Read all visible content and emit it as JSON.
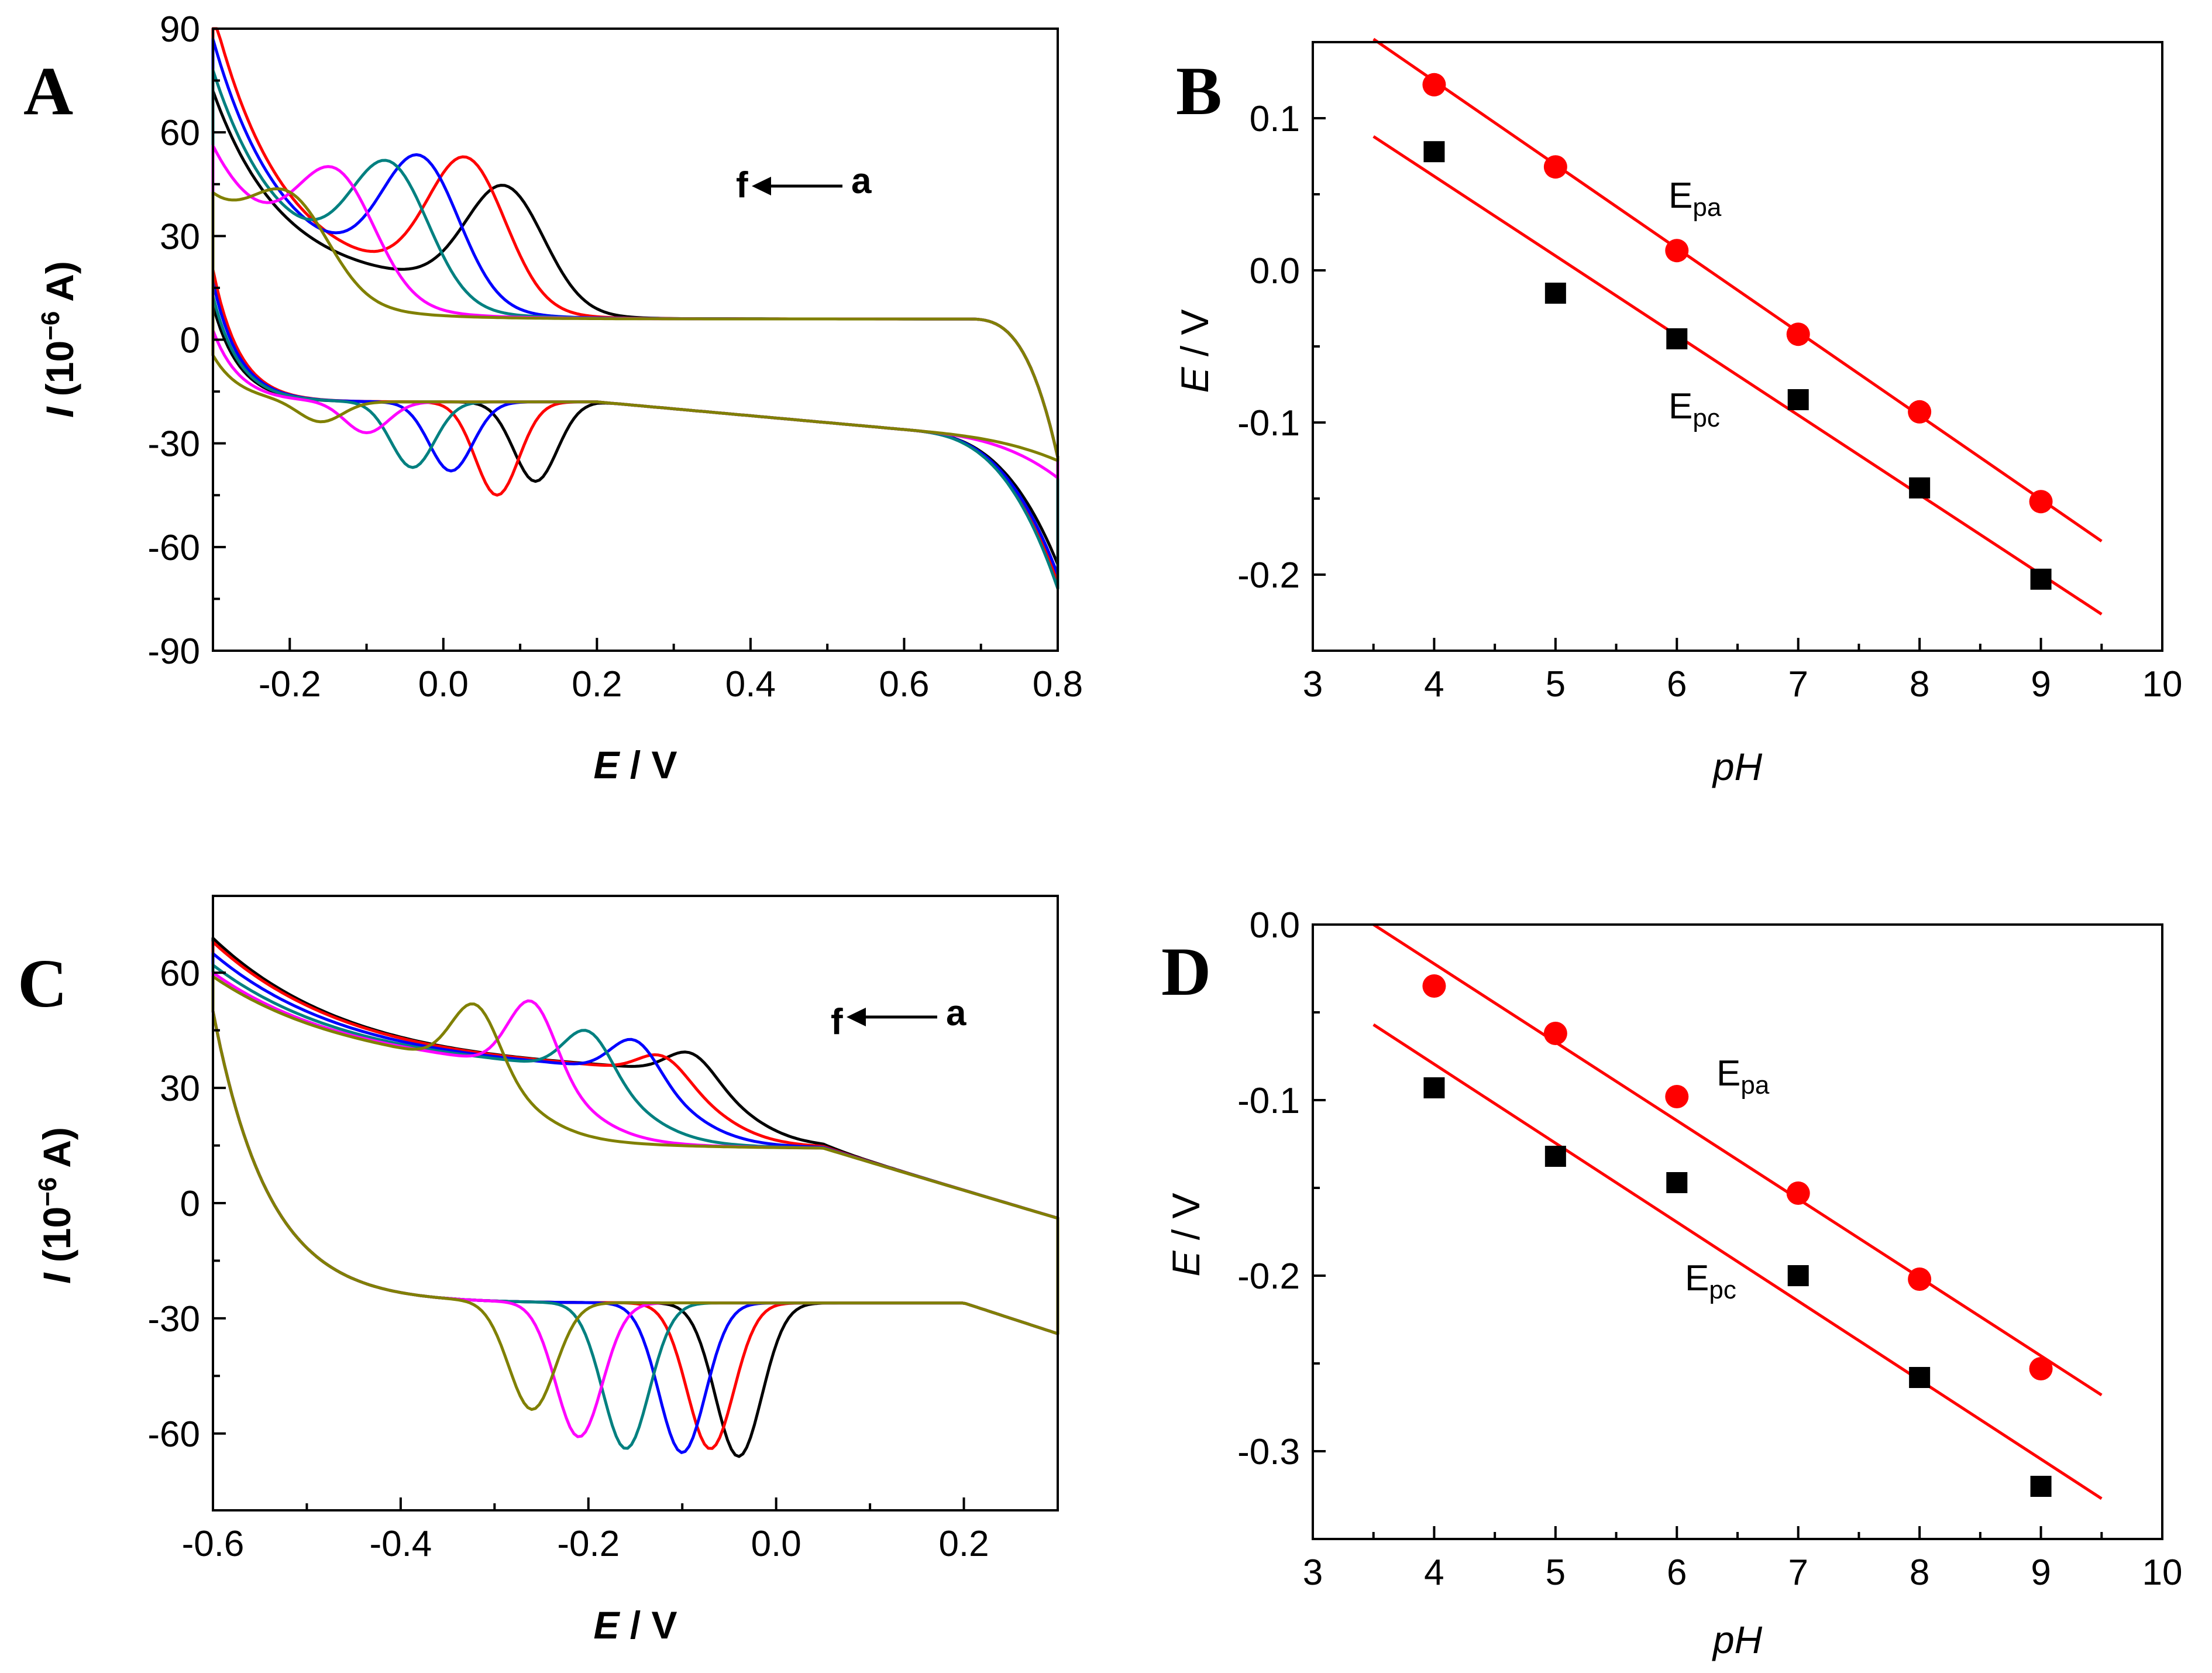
{
  "figure": {
    "panels": [
      "A",
      "B",
      "C",
      "D"
    ]
  },
  "chart_data": [
    {
      "panel": "A",
      "type": "line",
      "xlabel_italic": "E",
      "xlabel_rest": " / V",
      "ylabel_italic": "I",
      "ylabel_rest": " (10",
      "ylabel_sup": "−6",
      "ylabel_tail": " A)",
      "xlim": [
        -0.3,
        0.8
      ],
      "ylim": [
        -90,
        90
      ],
      "xticks": [
        -0.2,
        0.0,
        0.2,
        0.4,
        0.6,
        0.8
      ],
      "xtick_labels": [
        "-0.2",
        "0.0",
        "0.2",
        "0.4",
        "0.6",
        "0.8"
      ],
      "yticks": [
        -90,
        -60,
        -30,
        0,
        30,
        60,
        90
      ],
      "ytick_labels": [
        "-90",
        "-60",
        "-30",
        "0",
        "30",
        "60",
        "90"
      ],
      "annotation": {
        "from": "f",
        "to": "a"
      },
      "series": [
        {
          "color": "#000000",
          "Epa": 0.08,
          "Ipa": 43,
          "Epc": 0.12,
          "Ipc": -41,
          "start": 62,
          "end_anodic": -65
        },
        {
          "color": "#ff0000",
          "Epa": 0.03,
          "Ipa": 50,
          "Epc": 0.07,
          "Ipc": -45,
          "start": 85,
          "end_anodic": -70
        },
        {
          "color": "#0000ff",
          "Epa": -0.03,
          "Ipa": 49,
          "Epc": 0.01,
          "Ipc": -38,
          "start": 77,
          "end_anodic": -68
        },
        {
          "color": "#008080",
          "Epa": -0.07,
          "Ipa": 46,
          "Epc": -0.04,
          "Ipc": -37,
          "start": 68,
          "end_anodic": -72
        },
        {
          "color": "#ff00ff",
          "Epa": -0.14,
          "Ipa": 42,
          "Epc": -0.1,
          "Ipc": -27,
          "start": 46,
          "end_anodic": -40
        },
        {
          "color": "#808000",
          "Epa": -0.2,
          "Ipa": 34,
          "Epc": -0.16,
          "Ipc": -24,
          "start": 30,
          "end_anodic": -35
        }
      ]
    },
    {
      "panel": "B",
      "type": "scatter",
      "xlabel": "pH",
      "ylabel_italic": "E",
      "ylabel_rest": " / V",
      "xlim": [
        3,
        10
      ],
      "ylim": [
        -0.25,
        0.15
      ],
      "xticks": [
        3,
        4,
        5,
        6,
        7,
        8,
        9,
        10
      ],
      "xtick_labels": [
        "3",
        "4",
        "5",
        "6",
        "7",
        "8",
        "9",
        "10"
      ],
      "yticks": [
        -0.2,
        -0.1,
        0.0,
        0.1
      ],
      "ytick_labels": [
        "-0.2",
        "-0.1",
        "0.0",
        "0.1"
      ],
      "series": [
        {
          "label_main": "E",
          "label_sub": "pa",
          "marker": "circle",
          "color": "#ff0000",
          "x": [
            4,
            5,
            6,
            7,
            8,
            9
          ],
          "y": [
            0.122,
            0.068,
            0.013,
            -0.042,
            -0.093,
            -0.152
          ],
          "fit": {
            "x": [
              3.5,
              9.5
            ],
            "y": [
              0.152,
              -0.178
            ]
          }
        },
        {
          "label_main": "E",
          "label_sub": "pc",
          "marker": "square",
          "color": "#000000",
          "x": [
            4,
            5,
            6,
            7,
            8,
            9
          ],
          "y": [
            0.078,
            -0.015,
            -0.045,
            -0.085,
            -0.143,
            -0.203
          ],
          "fit": {
            "x": [
              3.5,
              9.5
            ],
            "y": [
              0.088,
              -0.226
            ]
          }
        }
      ]
    },
    {
      "panel": "C",
      "type": "line",
      "xlabel_italic": "E",
      "xlabel_rest": " / V",
      "ylabel_italic": "I",
      "ylabel_rest": " (10",
      "ylabel_sup": "−6",
      "ylabel_tail": " A)",
      "xlim": [
        -0.6,
        0.3
      ],
      "ylim": [
        -80,
        80
      ],
      "xticks": [
        -0.6,
        -0.4,
        -0.2,
        0.0,
        0.2
      ],
      "xtick_labels": [
        "-0.6",
        "-0.4",
        "-0.2",
        "0.0",
        "0.2"
      ],
      "yticks": [
        -60,
        -30,
        0,
        30,
        60
      ],
      "ytick_labels": [
        "-60",
        "-30",
        "0",
        "30",
        "60"
      ],
      "annotation": {
        "from": "f",
        "to": "a"
      },
      "series": [
        {
          "color": "#000000",
          "Epa": -0.09,
          "Ipa": 45,
          "Epc": -0.04,
          "Ipc": -65,
          "start": 65
        },
        {
          "color": "#ff0000",
          "Epa": -0.12,
          "Ipa": 44,
          "Epc": -0.07,
          "Ipc": -63,
          "start": 64
        },
        {
          "color": "#0000ff",
          "Epa": -0.15,
          "Ipa": 48,
          "Epc": -0.1,
          "Ipc": -64,
          "start": 61
        },
        {
          "color": "#008080",
          "Epa": -0.2,
          "Ipa": 50,
          "Epc": -0.16,
          "Ipc": -63,
          "start": 58
        },
        {
          "color": "#ff00ff",
          "Epa": -0.26,
          "Ipa": 57,
          "Epc": -0.21,
          "Ipc": -60,
          "start": 56
        },
        {
          "color": "#808000",
          "Epa": -0.32,
          "Ipa": 55,
          "Epc": -0.26,
          "Ipc": -53,
          "start": 55
        }
      ]
    },
    {
      "panel": "D",
      "type": "scatter",
      "xlabel": "pH",
      "ylabel_italic": "E",
      "ylabel_rest": " / V",
      "xlim": [
        3,
        10
      ],
      "ylim": [
        -0.35,
        0.0
      ],
      "xticks": [
        3,
        4,
        5,
        6,
        7,
        8,
        9,
        10
      ],
      "xtick_labels": [
        "3",
        "4",
        "5",
        "6",
        "7",
        "8",
        "9",
        "10"
      ],
      "yticks": [
        -0.3,
        -0.2,
        -0.1,
        0.0
      ],
      "ytick_labels": [
        "-0.3",
        "-0.2",
        "-0.1",
        "0.0"
      ],
      "series": [
        {
          "label_main": "E",
          "label_sub": "pa",
          "marker": "circle",
          "color": "#ff0000",
          "x": [
            4,
            5,
            6,
            7,
            8,
            9
          ],
          "y": [
            -0.035,
            -0.062,
            -0.098,
            -0.153,
            -0.202,
            -0.253
          ],
          "fit": {
            "x": [
              3.5,
              9.5
            ],
            "y": [
              0.0,
              -0.268
            ]
          }
        },
        {
          "label_main": "E",
          "label_sub": "pc",
          "marker": "square",
          "color": "#000000",
          "x": [
            4,
            5,
            6,
            7,
            8,
            9
          ],
          "y": [
            -0.093,
            -0.132,
            -0.147,
            -0.2,
            -0.258,
            -0.32
          ],
          "fit": {
            "x": [
              3.5,
              9.5
            ],
            "y": [
              -0.057,
              -0.327
            ]
          }
        }
      ]
    }
  ]
}
